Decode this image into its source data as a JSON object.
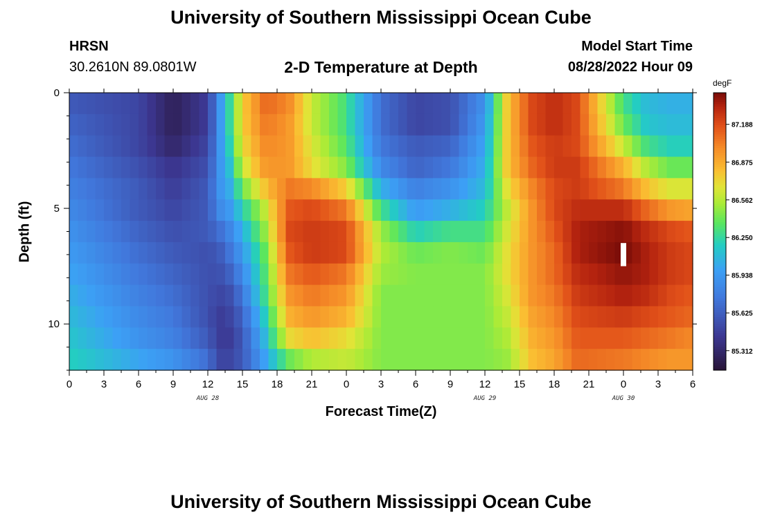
{
  "header": {
    "title": "University of Southern Mississippi Ocean Cube",
    "station_name": "HRSN",
    "coordinates": "30.2610N  89.0801W",
    "plot_title": "2-D Temperature at Depth",
    "model_start_label": "Model Start Time",
    "model_start_value": "08/28/2022 Hour 09"
  },
  "footer": {
    "title": "University of Southern Mississippi Ocean Cube"
  },
  "chart_data": {
    "type": "heatmap",
    "title": "2-D Temperature at Depth",
    "xlabel": "Forecast Time(Z)",
    "ylabel": "Depth (ft)",
    "x_tick_labels": [
      "0",
      "3",
      "6",
      "9",
      "12",
      "15",
      "18",
      "21",
      "0",
      "3",
      "6",
      "9",
      "12",
      "15",
      "18",
      "21",
      "0",
      "3",
      "6"
    ],
    "x_range_hours": [
      0,
      54
    ],
    "date_labels": [
      {
        "text": "AUG 28",
        "at_hour": 12
      },
      {
        "text": "AUG 29",
        "at_hour": 36
      },
      {
        "text": "AUG 30",
        "at_hour": 48
      }
    ],
    "y_tick_labels": [
      "0",
      "5",
      "10"
    ],
    "y_ticks": [
      0,
      5,
      10
    ],
    "y_range_ft": [
      0,
      12
    ],
    "colorbar": {
      "unit": "degF",
      "min": 85.15,
      "max": 87.45,
      "tick_labels": [
        "87.188",
        "86.875",
        "86.562",
        "86.250",
        "85.938",
        "85.625",
        "85.312"
      ],
      "tick_values": [
        87.188,
        86.875,
        86.562,
        86.25,
        85.938,
        85.625,
        85.312
      ]
    },
    "series": [
      {
        "depth_ft": 0,
        "hours": [
          0,
          6,
          9,
          12,
          13,
          14,
          15,
          17,
          19,
          21,
          24,
          27,
          30,
          33,
          36,
          38,
          40,
          42,
          44,
          48,
          50,
          52,
          54
        ],
        "temp_degF": [
          85.6,
          85.5,
          85.25,
          85.45,
          85.9,
          86.3,
          86.75,
          87.1,
          87.0,
          86.6,
          86.3,
          85.7,
          85.5,
          85.55,
          85.9,
          86.8,
          87.2,
          87.3,
          87.2,
          86.3,
          86.1,
          86.05,
          86.05
        ]
      },
      {
        "depth_ft": 1,
        "hours": [
          0,
          6,
          9,
          12,
          13,
          14,
          15,
          17,
          19,
          21,
          24,
          27,
          30,
          33,
          36,
          38,
          40,
          42,
          44,
          48,
          50,
          52,
          54
        ],
        "temp_degF": [
          85.65,
          85.5,
          85.25,
          85.45,
          85.9,
          86.3,
          86.75,
          87.05,
          86.95,
          86.6,
          86.3,
          85.7,
          85.5,
          85.55,
          85.95,
          86.8,
          87.2,
          87.3,
          87.2,
          86.4,
          86.15,
          86.1,
          86.1
        ]
      },
      {
        "depth_ft": 2,
        "hours": [
          0,
          6,
          9,
          12,
          13,
          14,
          15,
          17,
          19,
          21,
          24,
          27,
          30,
          33,
          36,
          38,
          40,
          42,
          44,
          48,
          50,
          52,
          54
        ],
        "temp_degF": [
          85.7,
          85.5,
          85.3,
          85.5,
          85.9,
          86.25,
          86.7,
          87.0,
          86.95,
          86.65,
          86.35,
          85.75,
          85.6,
          85.65,
          86.0,
          86.8,
          87.15,
          87.25,
          87.2,
          86.6,
          86.3,
          86.2,
          86.2
        ]
      },
      {
        "depth_ft": 3,
        "hours": [
          0,
          6,
          9,
          12,
          13,
          14,
          15,
          17,
          19,
          21,
          24,
          27,
          30,
          33,
          36,
          38,
          40,
          42,
          44,
          48,
          50,
          52,
          54
        ],
        "temp_degF": [
          85.75,
          85.55,
          85.4,
          85.55,
          85.9,
          86.15,
          86.6,
          86.95,
          86.95,
          86.7,
          86.45,
          85.85,
          85.65,
          85.75,
          86.05,
          86.8,
          87.1,
          87.25,
          87.25,
          86.85,
          86.55,
          86.4,
          86.4
        ]
      },
      {
        "depth_ft": 4,
        "hours": [
          0,
          6,
          9,
          12,
          13,
          14,
          15,
          17,
          19,
          21,
          24,
          27,
          30,
          33,
          36,
          38,
          40,
          42,
          44,
          48,
          50,
          52,
          54
        ],
        "temp_degF": [
          85.8,
          85.6,
          85.45,
          85.6,
          85.9,
          86.05,
          86.4,
          86.8,
          87.05,
          87.0,
          86.75,
          86.05,
          85.8,
          85.9,
          86.1,
          86.7,
          87.0,
          87.2,
          87.25,
          87.05,
          86.8,
          86.65,
          86.65
        ]
      },
      {
        "depth_ft": 5,
        "hours": [
          0,
          6,
          9,
          12,
          13,
          14,
          15,
          17,
          19,
          21,
          24,
          27,
          30,
          33,
          36,
          38,
          40,
          42,
          44,
          48,
          50,
          52,
          54
        ],
        "temp_degF": [
          85.85,
          85.6,
          85.5,
          85.6,
          85.85,
          85.95,
          86.2,
          86.6,
          87.15,
          87.2,
          87.05,
          86.3,
          85.95,
          86.05,
          86.2,
          86.6,
          86.95,
          87.2,
          87.3,
          87.3,
          87.1,
          86.95,
          86.9
        ]
      },
      {
        "depth_ft": 6,
        "hours": [
          0,
          6,
          9,
          12,
          13,
          14,
          15,
          17,
          19,
          21,
          24,
          27,
          30,
          33,
          36,
          38,
          40,
          42,
          44,
          48,
          50,
          52,
          54
        ],
        "temp_degF": [
          85.9,
          85.65,
          85.55,
          85.6,
          85.7,
          85.85,
          86.05,
          86.5,
          87.2,
          87.25,
          87.2,
          86.5,
          86.2,
          86.3,
          86.3,
          86.65,
          86.95,
          87.15,
          87.35,
          87.42,
          87.3,
          87.2,
          87.15
        ]
      },
      {
        "depth_ft": 7,
        "hours": [
          0,
          6,
          9,
          12,
          13,
          14,
          15,
          17,
          19,
          21,
          24,
          27,
          30,
          33,
          36,
          38,
          40,
          42,
          44,
          48,
          50,
          52,
          54
        ],
        "temp_degF": [
          85.95,
          85.7,
          85.6,
          85.55,
          85.6,
          85.75,
          85.95,
          86.4,
          87.15,
          87.25,
          87.2,
          86.55,
          86.4,
          86.45,
          86.4,
          86.7,
          86.95,
          87.1,
          87.35,
          87.45,
          87.35,
          87.25,
          87.2
        ]
      },
      {
        "depth_ft": 8,
        "hours": [
          0,
          6,
          9,
          12,
          13,
          14,
          15,
          17,
          19,
          21,
          24,
          27,
          30,
          33,
          36,
          38,
          40,
          42,
          44,
          48,
          50,
          52,
          54
        ],
        "temp_degF": [
          86.0,
          85.75,
          85.65,
          85.55,
          85.55,
          85.65,
          85.85,
          86.35,
          87.05,
          87.15,
          87.05,
          86.5,
          86.45,
          86.45,
          86.45,
          86.7,
          86.95,
          87.1,
          87.3,
          87.4,
          87.35,
          87.25,
          87.2
        ]
      },
      {
        "depth_ft": 9,
        "hours": [
          0,
          6,
          9,
          12,
          13,
          14,
          15,
          17,
          19,
          21,
          24,
          27,
          30,
          33,
          36,
          38,
          40,
          42,
          44,
          48,
          50,
          52,
          54
        ],
        "temp_degF": [
          86.05,
          85.8,
          85.7,
          85.55,
          85.5,
          85.55,
          85.75,
          86.3,
          86.95,
          87.05,
          86.95,
          86.45,
          86.45,
          86.45,
          86.45,
          86.65,
          86.95,
          87.05,
          87.25,
          87.35,
          87.3,
          87.2,
          87.15
        ]
      },
      {
        "depth_ft": 10,
        "hours": [
          0,
          6,
          9,
          12,
          13,
          14,
          15,
          17,
          19,
          21,
          24,
          27,
          30,
          33,
          36,
          38,
          40,
          42,
          44,
          48,
          50,
          52,
          54
        ],
        "temp_degF": [
          86.1,
          85.85,
          85.75,
          85.55,
          85.45,
          85.5,
          85.65,
          86.2,
          86.85,
          86.95,
          86.85,
          86.45,
          86.45,
          86.45,
          86.45,
          86.6,
          86.9,
          87.0,
          87.2,
          87.25,
          87.2,
          87.15,
          87.1
        ]
      },
      {
        "depth_ft": 11,
        "hours": [
          0,
          6,
          9,
          12,
          13,
          14,
          15,
          17,
          19,
          21,
          24,
          27,
          30,
          33,
          36,
          38,
          40,
          42,
          44,
          48,
          50,
          52,
          54
        ],
        "temp_degF": [
          86.15,
          85.9,
          85.8,
          85.6,
          85.45,
          85.45,
          85.6,
          86.1,
          86.7,
          86.8,
          86.7,
          86.45,
          86.45,
          86.45,
          86.45,
          86.55,
          86.85,
          86.95,
          87.15,
          87.15,
          87.1,
          87.05,
          87.0
        ]
      },
      {
        "depth_ft": 12,
        "hours": [
          0,
          6,
          9,
          12,
          13,
          14,
          15,
          17,
          19,
          21,
          24,
          27,
          30,
          33,
          36,
          38,
          40,
          42,
          44,
          48,
          50,
          52,
          54
        ],
        "temp_degF": [
          86.2,
          86.0,
          85.9,
          85.7,
          85.5,
          85.5,
          85.6,
          86.0,
          86.4,
          86.55,
          86.6,
          86.45,
          86.45,
          86.45,
          86.45,
          86.5,
          86.8,
          86.9,
          87.1,
          87.05,
          87.0,
          86.95,
          86.95
        ]
      }
    ],
    "annotations": [
      {
        "type": "white-bar",
        "hour": 48,
        "depth_ft_range": [
          6.5,
          7.5
        ]
      }
    ]
  }
}
